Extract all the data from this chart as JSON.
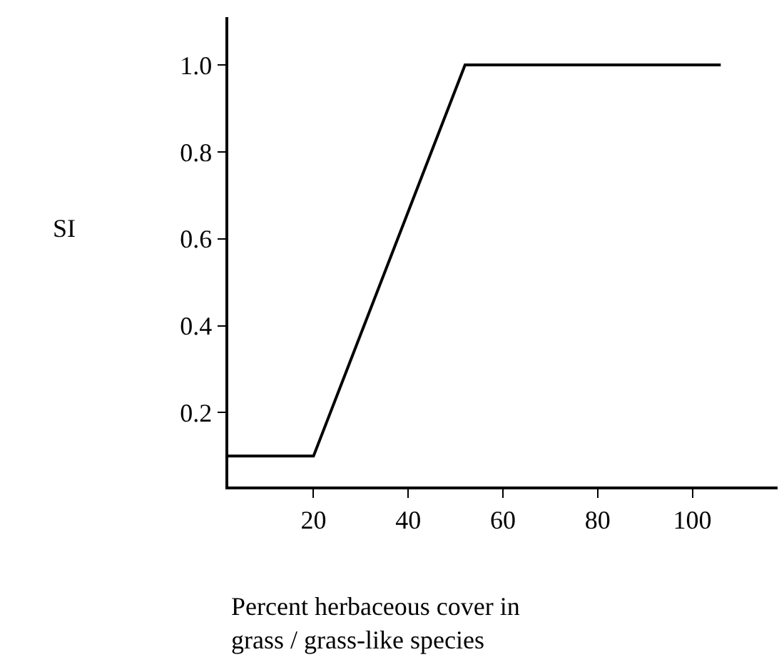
{
  "chart_data": {
    "type": "line",
    "xlabel": "Percent herbaceous cover in\ngrass / grass-like species",
    "ylabel": "SI",
    "x": [
      2,
      20,
      52,
      106
    ],
    "values": [
      0.1,
      0.1,
      1.0,
      1.0
    ],
    "color": "#000000",
    "xlim": [
      2,
      118
    ],
    "ylim": [
      0.03,
      1.11
    ],
    "xticks": [
      20,
      40,
      60,
      80,
      100
    ],
    "yticks": [
      0.2,
      0.4,
      0.6,
      0.8,
      {
        "value": 1,
        "label": "1.0"
      }
    ],
    "marker": "none",
    "line_style": "solid"
  }
}
